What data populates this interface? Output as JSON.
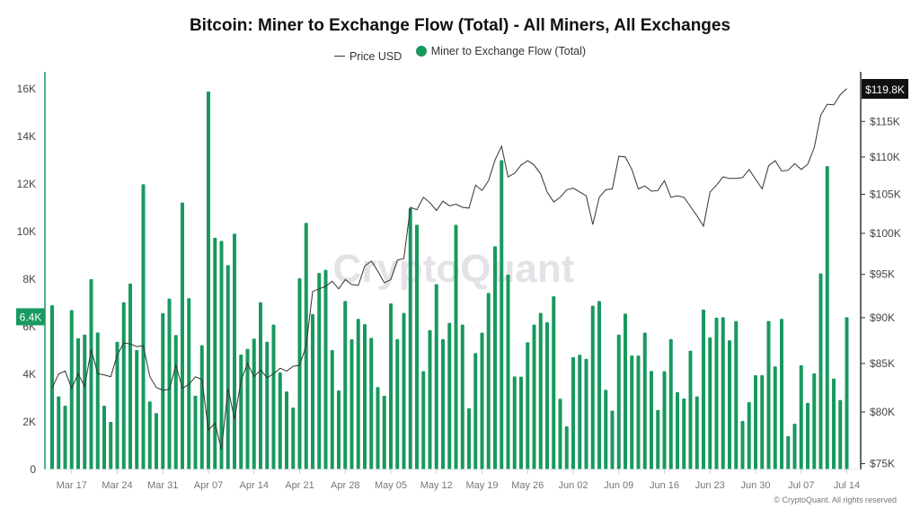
{
  "chart_data": {
    "type": "bar+line",
    "title": "Bitcoin: Miner to Exchange Flow (Total) - All Miners, All Exchanges",
    "legend": [
      "Price USD",
      "Miner to Exchange Flow (Total)"
    ],
    "legend_position": "top",
    "watermark": "CryptoQuant",
    "footer": "© CryptoQuant. All rights reserved",
    "colors": {
      "bar": "#18995f",
      "line": "#333333",
      "last_value_badge_left": "#18995f",
      "last_value_badge_right": "#111111"
    },
    "x": [
      "Mar 14",
      "Mar 15",
      "Mar 16",
      "Mar 17",
      "Mar 18",
      "Mar 19",
      "Mar 20",
      "Mar 21",
      "Mar 22",
      "Mar 23",
      "Mar 24",
      "Mar 25",
      "Mar 26",
      "Mar 27",
      "Mar 28",
      "Mar 29",
      "Mar 30",
      "Mar 31",
      "Apr 01",
      "Apr 02",
      "Apr 03",
      "Apr 04",
      "Apr 05",
      "Apr 06",
      "Apr 07",
      "Apr 08",
      "Apr 09",
      "Apr 10",
      "Apr 11",
      "Apr 12",
      "Apr 13",
      "Apr 14",
      "Apr 15",
      "Apr 16",
      "Apr 17",
      "Apr 18",
      "Apr 19",
      "Apr 20",
      "Apr 21",
      "Apr 22",
      "Apr 23",
      "Apr 24",
      "Apr 25",
      "Apr 26",
      "Apr 27",
      "Apr 28",
      "Apr 29",
      "Apr 30",
      "May 01",
      "May 02",
      "May 03",
      "May 04",
      "May 05",
      "May 06",
      "May 07",
      "May 08",
      "May 09",
      "May 10",
      "May 11",
      "May 12",
      "May 13",
      "May 14",
      "May 15",
      "May 16",
      "May 17",
      "May 18",
      "May 19",
      "May 20",
      "May 21",
      "May 22",
      "May 23",
      "May 24",
      "May 25",
      "May 26",
      "May 27",
      "May 28",
      "May 29",
      "May 30",
      "May 31",
      "Jun 01",
      "Jun 02",
      "Jun 03",
      "Jun 04",
      "Jun 05",
      "Jun 06",
      "Jun 07",
      "Jun 08",
      "Jun 09",
      "Jun 10",
      "Jun 11",
      "Jun 12",
      "Jun 13",
      "Jun 14",
      "Jun 15",
      "Jun 16",
      "Jun 17",
      "Jun 18",
      "Jun 19",
      "Jun 20",
      "Jun 21",
      "Jun 22",
      "Jun 23",
      "Jun 24",
      "Jun 25",
      "Jun 26",
      "Jun 27",
      "Jun 28",
      "Jun 29",
      "Jun 30",
      "Jul 01",
      "Jul 02",
      "Jul 03",
      "Jul 04",
      "Jul 05",
      "Jul 06",
      "Jul 07",
      "Jul 08",
      "Jul 09",
      "Jul 10",
      "Jul 11",
      "Jul 12",
      "Jul 13",
      "Jul 14"
    ],
    "x_tick_labels": [
      "Mar 17",
      "Mar 24",
      "Mar 31",
      "Apr 07",
      "Apr 14",
      "Apr 21",
      "Apr 28",
      "May 05",
      "May 12",
      "May 19",
      "May 26",
      "Jun 02",
      "Jun 09",
      "Jun 16",
      "Jun 23",
      "Jun 30",
      "Jul 07",
      "Jul 14"
    ],
    "y_left": {
      "ticks": [
        0,
        2000,
        4000,
        6000,
        8000,
        10000,
        12000,
        14000,
        16000
      ],
      "tick_labels": [
        "0",
        "2K",
        "4K",
        "6K",
        "8K",
        "10K",
        "12K",
        "14K",
        "16K"
      ],
      "ylim": [
        0,
        16000
      ],
      "last_value_label": "6.4K"
    },
    "y_right": {
      "scale": "log",
      "ticks": [
        75000,
        80000,
        85000,
        90000,
        95000,
        100000,
        105000,
        110000,
        115000
      ],
      "tick_labels": [
        "$75K",
        "$80K",
        "$85K",
        "$90K",
        "$95K",
        "$100K",
        "$105K",
        "$110K",
        "$115K"
      ],
      "ylim": [
        75000,
        122000
      ],
      "last_value_label": "$119.8K"
    },
    "series": [
      {
        "name": "Miner to Exchange Flow (Total)",
        "type": "bar",
        "axis": "left",
        "values": [
          6900,
          3070,
          2680,
          6700,
          5520,
          5670,
          8000,
          5760,
          2680,
          2000,
          5370,
          7030,
          7810,
          5020,
          11990,
          2860,
          2370,
          6570,
          7180,
          5650,
          11220,
          7200,
          3100,
          5220,
          15890,
          9740,
          9610,
          8590,
          9910,
          4830,
          5070,
          5500,
          7030,
          5370,
          6090,
          4080,
          3280,
          2600,
          8040,
          10370,
          6530,
          8260,
          8390,
          5020,
          3320,
          7080,
          5470,
          6330,
          6110,
          5530,
          3460,
          3100,
          6980,
          5480,
          6580,
          10980,
          10290,
          4130,
          5860,
          7790,
          5480,
          6160,
          10290,
          6090,
          2570,
          4890,
          5750,
          7420,
          9380,
          13000,
          8190,
          3910,
          3900,
          5350,
          6090,
          6580,
          6190,
          7280,
          2970,
          1810,
          4720,
          4820,
          4650,
          6880,
          7080,
          3350,
          2470,
          5670,
          6550,
          4790,
          4790,
          5750,
          4140,
          2500,
          4130,
          5480,
          3250,
          2980,
          4990,
          3070,
          6720,
          5550,
          6380,
          6400,
          5430,
          6240,
          2040,
          2830,
          3960,
          3960,
          6240,
          4330,
          6330,
          1400,
          1920,
          4380,
          2800,
          4040,
          8240,
          12750,
          3820,
          2920,
          6400
        ]
      },
      {
        "name": "Price USD",
        "type": "line",
        "axis": "right",
        "values": [
          82400,
          83900,
          84200,
          82400,
          83900,
          82600,
          86500,
          83900,
          83800,
          83600,
          85900,
          87200,
          87100,
          86800,
          86900,
          83600,
          82500,
          82200,
          82300,
          84800,
          82400,
          82800,
          83600,
          83300,
          78200,
          78900,
          76300,
          82400,
          79300,
          83200,
          85000,
          83600,
          84300,
          83500,
          83900,
          84500,
          84200,
          84700,
          84800,
          86900,
          93000,
          93300,
          93600,
          94200,
          93300,
          94400,
          93800,
          93700,
          96000,
          96600,
          95400,
          94000,
          94400,
          96700,
          96900,
          103300,
          103000,
          104600,
          103900,
          102900,
          104100,
          103500,
          103700,
          103300,
          103200,
          106200,
          105500,
          106800,
          109600,
          111500,
          107300,
          107800,
          108900,
          109500,
          108900,
          107700,
          105300,
          104000,
          104600,
          105600,
          105800,
          105300,
          104800,
          101100,
          104600,
          105600,
          105700,
          110100,
          110000,
          108300,
          105700,
          106100,
          105400,
          105500,
          106800,
          104600,
          104800,
          104600,
          103400,
          102200,
          100900,
          105300,
          106200,
          107300,
          107100,
          107100,
          107200,
          108300,
          107000,
          105700,
          108800,
          109500,
          108100,
          108200,
          109100,
          108300,
          109000,
          111300,
          115900,
          117500,
          117400,
          118900,
          119800
        ]
      }
    ]
  }
}
